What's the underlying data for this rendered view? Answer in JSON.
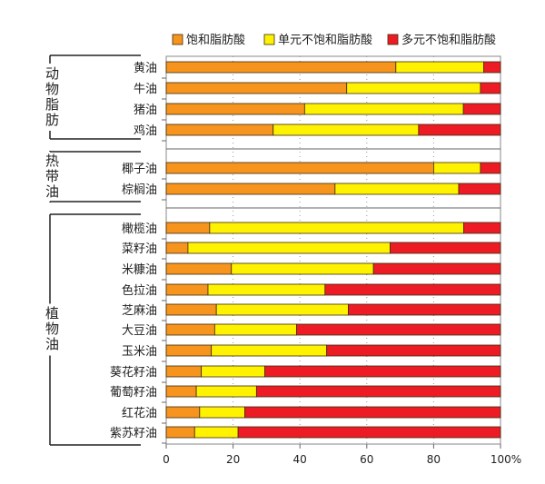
{
  "chart_data": {
    "type": "bar",
    "orientation": "horizontal",
    "stacked": true,
    "legend_position": "top",
    "x_ticks": [
      "0",
      "20",
      "40",
      "60",
      "80",
      "100%"
    ],
    "xlim": [
      0,
      100
    ],
    "grid": "vertical dotted",
    "groups": [
      {
        "label": "动物脂肪",
        "categories": [
          "黄油",
          "牛油",
          "猪油",
          "鸡油"
        ]
      },
      {
        "label": "热带油",
        "categories": [
          "椰子油",
          "棕榈油"
        ]
      },
      {
        "label": "植物油",
        "categories": [
          "橄榄油",
          "菜籽油",
          "米糠油",
          "色拉油",
          "芝麻油",
          "大豆油",
          "玉米油",
          "葵花籽油",
          "葡萄籽油",
          "红花油",
          "紫苏籽油"
        ]
      }
    ],
    "categories": [
      "黄油",
      "牛油",
      "猪油",
      "鸡油",
      "椰子油",
      "棕榈油",
      "橄榄油",
      "菜籽油",
      "米糠油",
      "色拉油",
      "芝麻油",
      "大豆油",
      "玉米油",
      "葵花籽油",
      "葡萄籽油",
      "红花油",
      "紫苏籽油"
    ],
    "series": [
      {
        "name": "饱和脂肪酸",
        "color": "#f7941d",
        "values": [
          68.7,
          54,
          41.4,
          32,
          80,
          50.5,
          13,
          6.5,
          19.5,
          12.5,
          15,
          14.5,
          13.5,
          10.5,
          9,
          10,
          8.5
        ]
      },
      {
        "name": "单元不饱和脂肪酸",
        "color": "#fff200",
        "values": [
          26.3,
          40,
          47.5,
          43.5,
          14,
          37,
          76,
          60.5,
          42.5,
          35,
          39.5,
          24.5,
          34.5,
          19,
          18,
          13.5,
          13
        ]
      },
      {
        "name": "多元不饱和脂肪酸",
        "color": "#ed1c24",
        "values": [
          5,
          6,
          11.1,
          24.5,
          6,
          12.5,
          11,
          33,
          38,
          52.5,
          45.5,
          61,
          52,
          70.5,
          73,
          76.5,
          78.5
        ]
      }
    ]
  }
}
